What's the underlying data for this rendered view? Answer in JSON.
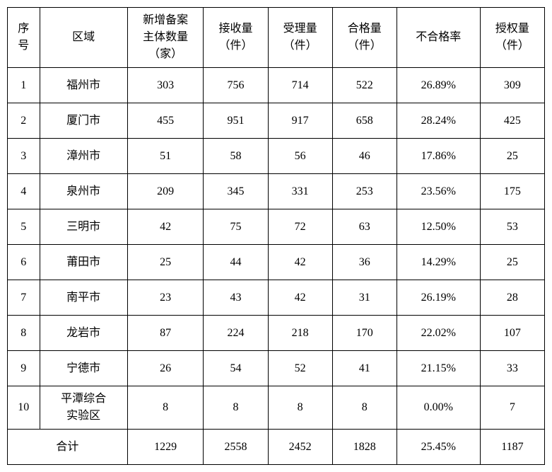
{
  "table": {
    "columns": [
      {
        "key": "seq",
        "label": "序\n号"
      },
      {
        "key": "region",
        "label": "区域"
      },
      {
        "key": "entities",
        "label": "新增备案\n主体数量\n（家）"
      },
      {
        "key": "received",
        "label": "接收量\n（件）"
      },
      {
        "key": "accepted",
        "label": "受理量\n（件）"
      },
      {
        "key": "qualified",
        "label": "合格量\n（件）"
      },
      {
        "key": "failrate",
        "label": "不合格率"
      },
      {
        "key": "authorized",
        "label": "授权量\n（件）"
      }
    ],
    "rows": [
      {
        "seq": "1",
        "region": "福州市",
        "entities": "303",
        "received": "756",
        "accepted": "714",
        "qualified": "522",
        "failrate": "26.89%",
        "authorized": "309"
      },
      {
        "seq": "2",
        "region": "厦门市",
        "entities": "455",
        "received": "951",
        "accepted": "917",
        "qualified": "658",
        "failrate": "28.24%",
        "authorized": "425"
      },
      {
        "seq": "3",
        "region": "漳州市",
        "entities": "51",
        "received": "58",
        "accepted": "56",
        "qualified": "46",
        "failrate": "17.86%",
        "authorized": "25"
      },
      {
        "seq": "4",
        "region": "泉州市",
        "entities": "209",
        "received": "345",
        "accepted": "331",
        "qualified": "253",
        "failrate": "23.56%",
        "authorized": "175"
      },
      {
        "seq": "5",
        "region": "三明市",
        "entities": "42",
        "received": "75",
        "accepted": "72",
        "qualified": "63",
        "failrate": "12.50%",
        "authorized": "53"
      },
      {
        "seq": "6",
        "region": "莆田市",
        "entities": "25",
        "received": "44",
        "accepted": "42",
        "qualified": "36",
        "failrate": "14.29%",
        "authorized": "25"
      },
      {
        "seq": "7",
        "region": "南平市",
        "entities": "23",
        "received": "43",
        "accepted": "42",
        "qualified": "31",
        "failrate": "26.19%",
        "authorized": "28"
      },
      {
        "seq": "8",
        "region": "龙岩市",
        "entities": "87",
        "received": "224",
        "accepted": "218",
        "qualified": "170",
        "failrate": "22.02%",
        "authorized": "107"
      },
      {
        "seq": "9",
        "region": "宁德市",
        "entities": "26",
        "received": "54",
        "accepted": "52",
        "qualified": "41",
        "failrate": "21.15%",
        "authorized": "33"
      },
      {
        "seq": "10",
        "region": "平潭综合\n实验区",
        "entities": "8",
        "received": "8",
        "accepted": "8",
        "qualified": "8",
        "failrate": "0.00%",
        "authorized": "7"
      }
    ],
    "total": {
      "label": "合计",
      "entities": "1229",
      "received": "2558",
      "accepted": "2452",
      "qualified": "1828",
      "failrate": "25.45%",
      "authorized": "1187"
    },
    "style": {
      "border_color": "#000000",
      "background_color": "#ffffff",
      "text_color": "#000000",
      "font_family": "SimSun",
      "font_size_pt": 12
    }
  }
}
